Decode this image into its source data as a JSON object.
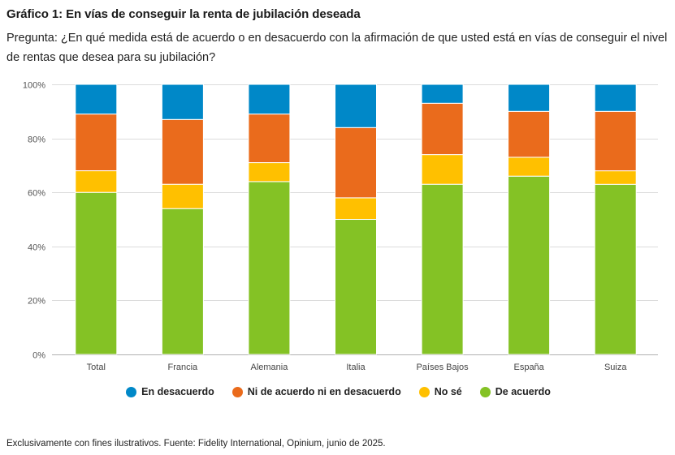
{
  "header": {
    "title": "Gráfico 1: En vías de conseguir la renta de jubilación deseada",
    "subtitle": "Pregunta: ¿En qué medida está de acuerdo o en desacuerdo con la afirmación de que usted está en vías de conseguir el nivel de rentas que desea para su jubilación?"
  },
  "footer": "Exclusivamente con fines ilustrativos. Fuente: Fidelity International, Opinium, junio de 2025.",
  "chart_data": {
    "type": "bar",
    "stacked": true,
    "title": "Gráfico 1: En vías de conseguir la renta de jubilación deseada",
    "xlabel": "",
    "ylabel": "",
    "ylim": [
      0,
      100
    ],
    "yticks": [
      "0%",
      "20%",
      "40%",
      "60%",
      "80%",
      "100%"
    ],
    "ytick_values": [
      0,
      20,
      40,
      60,
      80,
      100
    ],
    "grid": true,
    "legend_position": "bottom",
    "categories": [
      "Total",
      "Francia",
      "Alemania",
      "Italia",
      "Países Bajos",
      "España",
      "Suiza"
    ],
    "series": [
      {
        "name": "De acuerdo",
        "color": "#84c225",
        "values": [
          60,
          54,
          64,
          50,
          63,
          66,
          63
        ]
      },
      {
        "name": "No sé",
        "color": "#ffc000",
        "values": [
          8,
          9,
          7,
          8,
          11,
          7,
          5
        ]
      },
      {
        "name": "Ni de acuerdo ni en desacuerdo",
        "color": "#ea6b1c",
        "values": [
          21,
          24,
          18,
          26,
          19,
          17,
          22
        ]
      },
      {
        "name": "En desacuerdo",
        "color": "#0088c8",
        "values": [
          11,
          13,
          11,
          16,
          7,
          10,
          10
        ]
      }
    ],
    "legend_order": [
      "En desacuerdo",
      "Ni de acuerdo ni en desacuerdo",
      "No sé",
      "De acuerdo"
    ]
  }
}
